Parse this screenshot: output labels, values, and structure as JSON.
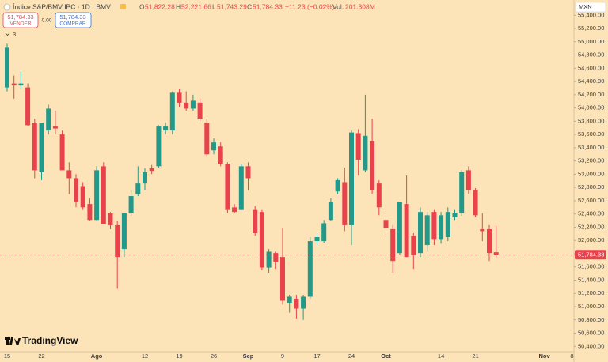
{
  "header": {
    "title": "Índice S&P/BMV IPC · 1D · BMV",
    "open_label": "O",
    "open": "51,822.28",
    "high_label": "H",
    "high": "52,221.66",
    "low_label": "L",
    "low": "51,743.29",
    "close_label": "C",
    "close": "51,784.33",
    "change": "−11.23 (−0.02%)",
    "volume_label": "Vol.",
    "volume": "201.308M",
    "sell_price": "51,784.33",
    "sell_label": "VENDER",
    "spread": "0.00",
    "buy_price": "51,784.33",
    "buy_label": "COMPRAR",
    "indicators": "3",
    "currency": "MXN",
    "logo": "TradingView"
  },
  "chart_data": {
    "type": "candlestick",
    "up_color": "#22998a",
    "down_color": "#e8434d",
    "background": "#fde4b8",
    "categories": [
      "15",
      null,
      null,
      null,
      null,
      "22",
      null,
      null,
      null,
      null,
      null,
      null,
      null,
      "Ago",
      null,
      null,
      null,
      null,
      null,
      null,
      "12",
      null,
      null,
      null,
      null,
      "19",
      null,
      null,
      null,
      null,
      "26",
      null,
      null,
      null,
      null,
      "Sep",
      null,
      null,
      null,
      null,
      "9",
      null,
      null,
      null,
      null,
      "17",
      null,
      null,
      null,
      null,
      "24",
      null,
      null,
      null,
      null,
      "Oct",
      null,
      null,
      null,
      null,
      null,
      null,
      null,
      "14",
      null,
      null,
      null,
      null,
      "21",
      null,
      null,
      null,
      null,
      null,
      null,
      null,
      null,
      null,
      "Nov",
      null,
      null,
      null,
      "8"
    ],
    "open": [
      54310,
      54370,
      54340,
      54310,
      53780,
      53030,
      53660,
      53720,
      53600,
      53060,
      52940,
      52820,
      52550,
      52310,
      53120,
      52410,
      52230,
      51870,
      52410,
      52700,
      52860,
      53090,
      53120,
      53660,
      53660,
      54230,
      54080,
      53990,
      54080,
      53780,
      53360,
      53420,
      53160,
      52500,
      52460,
      53120,
      52460,
      52430,
      51590,
      51810,
      51750,
      51060,
      51120,
      50970,
      51150,
      51990,
      51990,
      52310,
      52740,
      52880,
      52230,
      53620,
      53060,
      53500,
      52860,
      52310,
      52170,
      51810,
      52550,
      52070,
      51810,
      51930,
      52430,
      52010,
      52050,
      52350,
      52410,
      53060,
      52760,
      52170,
      52170,
      51822.28,
      null,
      null,
      null,
      null,
      null,
      null,
      null,
      null,
      null,
      null,
      null
    ],
    "high": [
      54970,
      54490,
      54550,
      54370,
      53840,
      53780,
      54050,
      53960,
      53660,
      53180,
      53000,
      52880,
      52640,
      53120,
      53180,
      52430,
      52290,
      52410,
      52760,
      53120,
      53090,
      53140,
      53740,
      53780,
      54250,
      54290,
      54250,
      54200,
      54140,
      53840,
      53540,
      53480,
      53180,
      52550,
      53160,
      53180,
      52520,
      52460,
      51870,
      51830,
      52190,
      51180,
      51180,
      51180,
      52050,
      52110,
      52310,
      52640,
      52940,
      53100,
      53660,
      53680,
      54200,
      53840,
      52910,
      52410,
      52230,
      52580,
      52980,
      52110,
      52500,
      52430,
      52460,
      52430,
      52500,
      52460,
      53060,
      53120,
      52790,
      52410,
      52230,
      52221.66,
      null,
      null,
      null,
      null,
      null,
      null,
      null,
      null,
      null,
      null,
      null
    ],
    "low": [
      54250,
      54140,
      54290,
      53720,
      52940,
      52910,
      53600,
      53600,
      53060,
      52700,
      52500,
      52460,
      52290,
      52290,
      52250,
      52170,
      51270,
      51750,
      52380,
      52670,
      52760,
      53000,
      53100,
      53600,
      53600,
      54020,
      53960,
      53960,
      53810,
      53260,
      53300,
      53120,
      52410,
      52410,
      52460,
      52760,
      52070,
      51550,
      51510,
      51570,
      51030,
      50910,
      50820,
      50800,
      51120,
      51930,
      51960,
      52290,
      52700,
      52140,
      51930,
      52980,
      53030,
      52700,
      52380,
      52050,
      51510,
      51780,
      51750,
      51570,
      51750,
      51830,
      51930,
      51950,
      51990,
      52310,
      52370,
      52700,
      52350,
      51990,
      51690,
      51743.29,
      null,
      null,
      null,
      null,
      null,
      null,
      null,
      null,
      null,
      null,
      null
    ],
    "close": [
      54910,
      54340,
      54370,
      53740,
      53060,
      53780,
      53990,
      53690,
      53060,
      52940,
      52580,
      52500,
      52310,
      53060,
      52250,
      52230,
      51750,
      52410,
      52670,
      52860,
      53030,
      53050,
      53720,
      53720,
      54230,
      54080,
      53990,
      54110,
      53840,
      53300,
      53480,
      53160,
      52460,
      52430,
      53120,
      52940,
      52110,
      51590,
      51830,
      51670,
      51090,
      51150,
      50970,
      51150,
      51990,
      52050,
      52260,
      52580,
      52910,
      52230,
      53630,
      53220,
      53580,
      52760,
      52500,
      52190,
      51690,
      52580,
      51750,
      51780,
      52430,
      52380,
      52010,
      52380,
      52430,
      52410,
      53030,
      52760,
      52380,
      52140,
      51810,
      51784.33,
      null,
      null,
      null,
      null,
      null,
      null,
      null,
      null,
      null,
      null,
      null
    ],
    "ylim": [
      50320,
      55630
    ],
    "yticks": [
      {
        "value": 50400,
        "label": "50,400.00"
      },
      {
        "value": 50600,
        "label": "50,600.00"
      },
      {
        "value": 50800,
        "label": "50,800.00"
      },
      {
        "value": 51000,
        "label": "51,000.00"
      },
      {
        "value": 51200,
        "label": "51,200.00"
      },
      {
        "value": 51400,
        "label": "51,400.00"
      },
      {
        "value": 51600,
        "label": "51,600.00"
      },
      {
        "value": 51800,
        "label": "51,800.00"
      },
      {
        "value": 52000,
        "label": "52,000.00"
      },
      {
        "value": 52200,
        "label": "52,200.00"
      },
      {
        "value": 52400,
        "label": "52,400.00"
      },
      {
        "value": 52600,
        "label": "52,600.00"
      },
      {
        "value": 52800,
        "label": "52,800.00"
      },
      {
        "value": 53000,
        "label": "53,000.00"
      },
      {
        "value": 53200,
        "label": "53,200.00"
      },
      {
        "value": 53400,
        "label": "53,400.00"
      },
      {
        "value": 53600,
        "label": "53,600.00"
      },
      {
        "value": 53800,
        "label": "53,800.00"
      },
      {
        "value": 54000,
        "label": "54,000.00"
      },
      {
        "value": 54200,
        "label": "54,200.00"
      },
      {
        "value": 54400,
        "label": "54,400.00"
      },
      {
        "value": 54600,
        "label": "54,600.00"
      },
      {
        "value": 54800,
        "label": "54,800.00"
      },
      {
        "value": 55000,
        "label": "55,000.00"
      },
      {
        "value": 55200,
        "label": "55,200.00"
      },
      {
        "value": 55400,
        "label": "55,400.00"
      }
    ],
    "last_price": {
      "value": 51784.33,
      "label": "51,784.33"
    }
  }
}
